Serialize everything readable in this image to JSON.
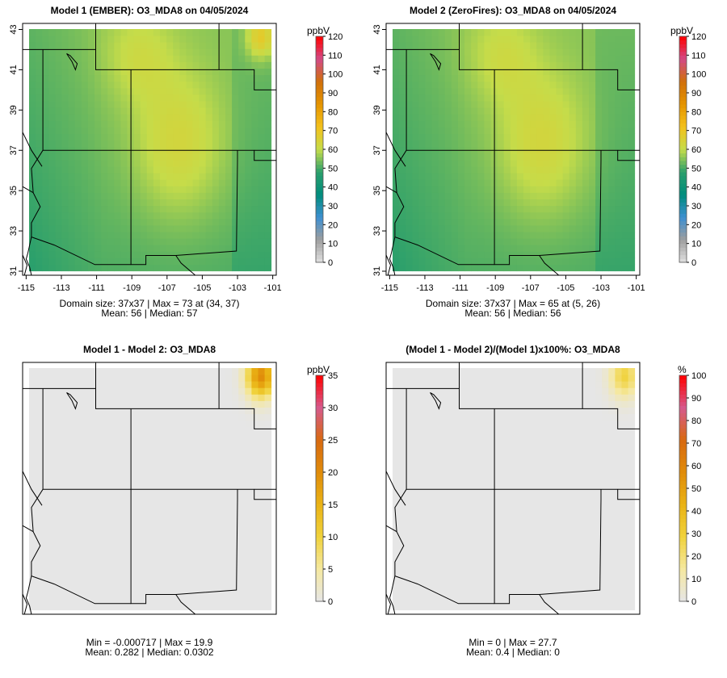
{
  "chart_data": [
    {
      "type": "heatmap",
      "title": "Model 1 (EMBER): O3_MDA8 on 04/05/2024",
      "unit": "ppbV",
      "colorbar_ticks": [
        "0",
        "10",
        "20",
        "30",
        "40",
        "50",
        "60",
        "70",
        "80",
        "90",
        "100",
        "110",
        "120"
      ],
      "colorbar_range": [
        0,
        120
      ],
      "colorbar_colors": [
        "#e0e0e0",
        "#9e9e9e",
        "#3d8fd1",
        "#008c7c",
        "#2a9f6c",
        "#c5dc4a",
        "#f3c11b",
        "#e59400",
        "#d0700a",
        "#d24a86",
        "#ff0000"
      ],
      "x_ticks": [
        "-115",
        "-113",
        "-111",
        "-109",
        "-107",
        "-105",
        "-103",
        "-101"
      ],
      "y_ticks": [
        "31",
        "33",
        "35",
        "37",
        "39",
        "41",
        "43"
      ],
      "xlim": [
        -115.2,
        -100.8
      ],
      "ylim": [
        30.8,
        43.3
      ],
      "grid": "37x37",
      "field": "pattern-min50-max73",
      "stats_line1": "Domain size: 37x37 | Max = 73 at (34, 37)",
      "stats_line2": "Mean: 56 |  Median: 57"
    },
    {
      "type": "heatmap",
      "title": "Model 2 (ZeroFires): O3_MDA8 on 04/05/2024",
      "unit": "ppbV",
      "colorbar_ticks": [
        "0",
        "10",
        "20",
        "30",
        "40",
        "50",
        "60",
        "70",
        "80",
        "90",
        "100",
        "110",
        "120"
      ],
      "colorbar_range": [
        0,
        120
      ],
      "colorbar_colors": [
        "#e0e0e0",
        "#9e9e9e",
        "#3d8fd1",
        "#008c7c",
        "#2a9f6c",
        "#c5dc4a",
        "#f3c11b",
        "#e59400",
        "#d0700a",
        "#d24a86",
        "#ff0000"
      ],
      "x_ticks": [
        "-115",
        "-113",
        "-111",
        "-109",
        "-107",
        "-105",
        "-103",
        "-101"
      ],
      "y_ticks": [
        "31",
        "33",
        "35",
        "37",
        "39",
        "41",
        "43"
      ],
      "xlim": [
        -115.2,
        -100.8
      ],
      "ylim": [
        30.8,
        43.3
      ],
      "grid": "37x37",
      "field": "pattern-min50-max65",
      "stats_line1": "Domain size: 37x37 | Max = 65 at (5, 26)",
      "stats_line2": "Mean: 56 |  Median: 56"
    },
    {
      "type": "heatmap",
      "title": "Model 1 - Model 2: O3_MDA8",
      "unit": "ppbV",
      "colorbar_ticks": [
        "0",
        "5",
        "10",
        "15",
        "20",
        "25",
        "30",
        "35"
      ],
      "colorbar_range": [
        0,
        35
      ],
      "colorbar_colors": [
        "#e6e6e6",
        "#f5e8a0",
        "#f0d23c",
        "#eab315",
        "#e08c0a",
        "#d86a10",
        "#d65a8c",
        "#ff0000"
      ],
      "x_ticks": [],
      "y_ticks": [],
      "xlim": [
        -115.2,
        -100.8
      ],
      "ylim": [
        30.8,
        43.3
      ],
      "grid": "37x37",
      "field": "diff-absolute-max19.9",
      "stats_line1": "Min = -0.000717 | Max = 19.9",
      "stats_line2": "Mean: 0.282 |  Median: 0.0302"
    },
    {
      "type": "heatmap",
      "title": "(Model 1 - Model 2)/(Model 1)x100%: O3_MDA8",
      "unit": "%",
      "colorbar_ticks": [
        "0",
        "10",
        "20",
        "30",
        "40",
        "50",
        "60",
        "70",
        "80",
        "90",
        "100"
      ],
      "colorbar_range": [
        0,
        100
      ],
      "colorbar_colors": [
        "#e6e6e6",
        "#f5e8a0",
        "#f0d23c",
        "#eab315",
        "#e08c0a",
        "#d86a10",
        "#d65a8c",
        "#ff0000"
      ],
      "x_ticks": [],
      "y_ticks": [],
      "xlim": [
        -115.2,
        -100.8
      ],
      "ylim": [
        30.8,
        43.3
      ],
      "grid": "37x37",
      "field": "diff-percent-max27.7",
      "stats_line1": "Min = 0 | Max = 27.7",
      "stats_line2": "Mean: 0.4 |  Median: 0"
    }
  ]
}
